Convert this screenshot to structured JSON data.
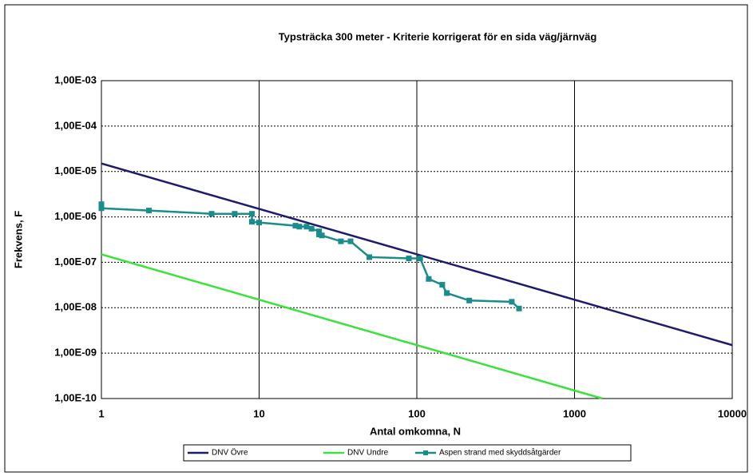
{
  "chart_data": {
    "type": "line",
    "title": "Typsträcka 300 meter - Kriterie korrigerat för en sida väg/järnväg",
    "xlabel": "Antal omkomna, N",
    "ylabel": "Frekvens, F",
    "xscale": "log",
    "yscale": "log",
    "xlim": [
      1,
      10000
    ],
    "ylim": [
      1e-10,
      0.001
    ],
    "xticks": [
      1,
      10,
      100,
      1000,
      10000
    ],
    "yticks": [
      {
        "value": 1e-10,
        "label": "1,00E-10"
      },
      {
        "value": 1e-09,
        "label": "1,00E-09"
      },
      {
        "value": 1e-08,
        "label": "1,00E-08"
      },
      {
        "value": 1e-07,
        "label": "1,00E-07"
      },
      {
        "value": 1e-06,
        "label": "1,00E-06"
      },
      {
        "value": 1e-05,
        "label": "1,00E-05"
      },
      {
        "value": 0.0001,
        "label": "1,00E-04"
      },
      {
        "value": 0.001,
        "label": "1,00E-03"
      }
    ],
    "grid": true,
    "legend": "bottom",
    "series": [
      {
        "name": "DNV Övre",
        "color": "#1c1c6e",
        "markers": false,
        "x": [
          1,
          10000
        ],
        "values": [
          1.5e-05,
          1.5e-09
        ]
      },
      {
        "name": "DNV Undre",
        "color": "#3ce23c",
        "markers": false,
        "x": [
          1,
          1500
        ],
        "values": [
          1.5e-07,
          1e-10
        ]
      },
      {
        "name": "Aspen strand med skyddsåtgärder",
        "color": "#1a8c8c",
        "markers": true,
        "x": [
          1,
          1,
          2,
          5,
          7,
          9,
          9,
          10,
          17,
          18,
          20,
          21.5,
          24,
          24,
          25,
          33,
          38,
          50,
          89,
          105,
          119,
          145,
          155,
          215,
          400,
          445
        ],
        "values": [
          1.9e-06,
          1.55e-06,
          1.38e-06,
          1.17e-06,
          1.17e-06,
          1.17e-06,
          7.8e-07,
          7.5e-07,
          6.4e-07,
          6.1e-07,
          6.1e-07,
          5.5e-07,
          4.8e-07,
          4.1e-07,
          3.9e-07,
          2.9e-07,
          2.9e-07,
          1.3e-07,
          1.22e-07,
          1.22e-07,
          4.3e-08,
          3.2e-08,
          2.1e-08,
          1.44e-08,
          1.35e-08,
          9.6e-09
        ]
      }
    ]
  }
}
